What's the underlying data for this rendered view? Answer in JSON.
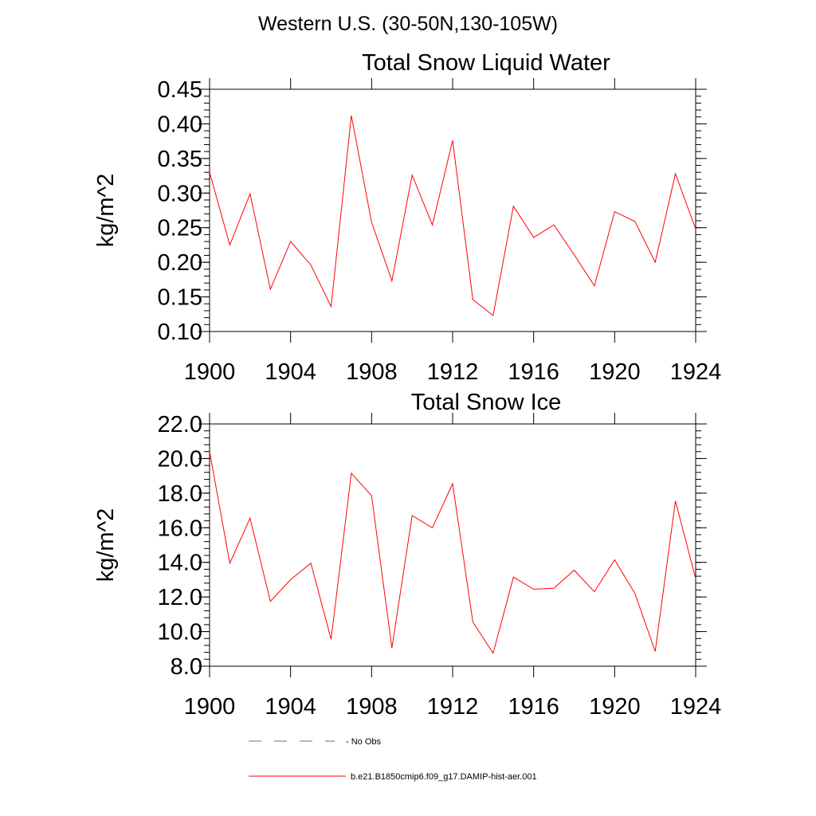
{
  "figure": {
    "suptitle": "Western U.S. (30-50N,130-105W)"
  },
  "legend": {
    "entries": [
      {
        "label": "- No Obs",
        "style": "dashed",
        "color": "#6a6aa8"
      },
      {
        "label": "b.e21.B1850cmip6.f09_g17.DAMIP-hist-aer.001",
        "style": "solid",
        "color": "#ff0000"
      }
    ]
  },
  "chart_data": [
    {
      "type": "line",
      "title": "Total Snow Liquid Water",
      "xlabel": "",
      "ylabel": "kg/m^2",
      "xlim": [
        1900,
        1924
      ],
      "ylim": [
        0.1,
        0.45
      ],
      "xticks": [
        1900,
        1904,
        1908,
        1912,
        1916,
        1920,
        1924
      ],
      "xtick_labels": [
        "1900",
        "1904",
        "1908",
        "1912",
        "1916",
        "1920",
        "1924"
      ],
      "yticks": [
        0.1,
        0.15,
        0.2,
        0.25,
        0.3,
        0.35,
        0.4,
        0.45
      ],
      "ytick_labels": [
        "0.10",
        "0.15",
        "0.20",
        "0.25",
        "0.30",
        "0.35",
        "0.40",
        "0.45"
      ],
      "grid": false,
      "series": [
        {
          "color": "#ff0000",
          "x": [
            1900,
            1901,
            1902,
            1903,
            1904,
            1905,
            1906,
            1907,
            1908,
            1909,
            1910,
            1911,
            1912,
            1913,
            1914,
            1915,
            1916,
            1917,
            1918,
            1919,
            1920,
            1921,
            1922,
            1923,
            1924
          ],
          "y": [
            0.33,
            0.225,
            0.299,
            0.161,
            0.23,
            0.196,
            0.136,
            0.412,
            0.258,
            0.173,
            0.326,
            0.254,
            0.376,
            0.146,
            0.123,
            0.281,
            0.236,
            0.254,
            0.211,
            0.166,
            0.273,
            0.259,
            0.2,
            0.328,
            0.248
          ]
        }
      ]
    },
    {
      "type": "line",
      "title": "Total Snow Ice",
      "xlabel": "",
      "ylabel": "kg/m^2",
      "xlim": [
        1900,
        1924
      ],
      "ylim": [
        8.0,
        22.0
      ],
      "xticks": [
        1900,
        1904,
        1908,
        1912,
        1916,
        1920,
        1924
      ],
      "xtick_labels": [
        "1900",
        "1904",
        "1908",
        "1912",
        "1916",
        "1920",
        "1924"
      ],
      "yticks": [
        8.0,
        10.0,
        12.0,
        14.0,
        16.0,
        18.0,
        20.0,
        22.0
      ],
      "ytick_labels": [
        "8.0",
        "10.0",
        "12.0",
        "14.0",
        "16.0",
        "18.0",
        "20.0",
        "22.0"
      ],
      "grid": false,
      "series": [
        {
          "color": "#ff0000",
          "x": [
            1900,
            1901,
            1902,
            1903,
            1904,
            1905,
            1906,
            1907,
            1908,
            1909,
            1910,
            1911,
            1912,
            1913,
            1914,
            1915,
            1916,
            1917,
            1918,
            1919,
            1920,
            1921,
            1922,
            1923,
            1924
          ],
          "y": [
            20.4,
            13.95,
            16.55,
            11.75,
            13.0,
            13.95,
            9.55,
            19.15,
            17.85,
            9.05,
            16.7,
            16.0,
            18.55,
            10.55,
            8.75,
            13.15,
            12.45,
            12.5,
            13.55,
            12.3,
            14.15,
            12.2,
            8.85,
            17.55,
            13.05
          ]
        }
      ]
    }
  ]
}
